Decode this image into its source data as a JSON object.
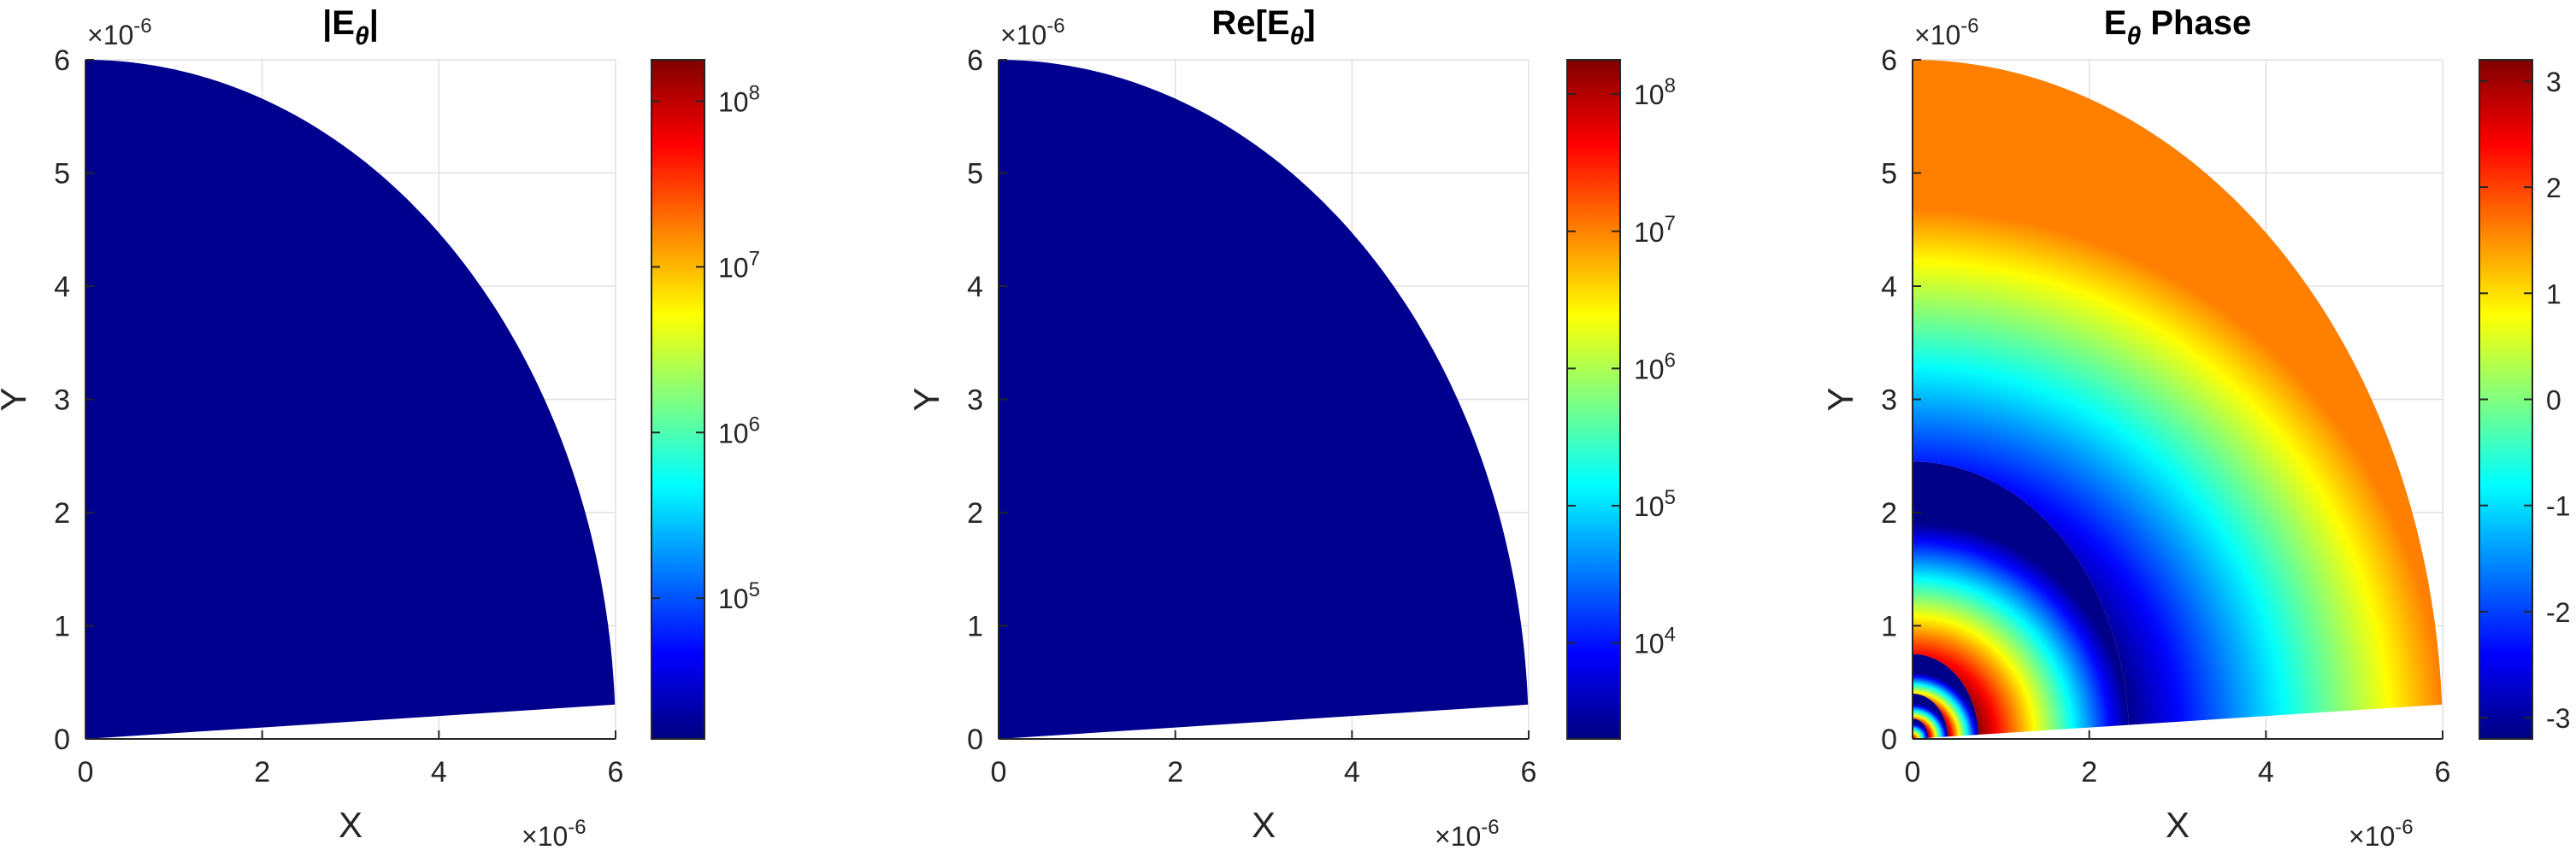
{
  "chart_data": [
    {
      "type": "heatmap",
      "title_parts": [
        "|E",
        "θ",
        "|"
      ],
      "xlabel": "X",
      "ylabel": "Y",
      "xticks": [
        "0",
        "2",
        "4",
        "6"
      ],
      "yticks": [
        "0",
        "1",
        "2",
        "3",
        "4",
        "5",
        "6"
      ],
      "x_tick_values": [
        0,
        2,
        4,
        6
      ],
      "y_tick_values": [
        0,
        1,
        2,
        3,
        4,
        5,
        6
      ],
      "x_multiplier": "×10",
      "x_multiplier_exp": "-6",
      "y_multiplier": "×10",
      "y_multiplier_exp": "-6",
      "xlim": [
        0,
        6
      ],
      "ylim": [
        0,
        6
      ],
      "domain": {
        "shape": "quarter-annulus sector",
        "radius": 6,
        "start_angle_deg": 2.9,
        "end_angle_deg": 90
      },
      "field_fill": "#00008f",
      "grid": true,
      "colormap": "jet",
      "colorbar": {
        "scale": "log",
        "min_exponent": 4.15,
        "max_exponent": 8.25,
        "tick_exponents": [
          "5",
          "6",
          "7",
          "8"
        ],
        "tick_base": "10",
        "tick_values": [
          5,
          6,
          7,
          8
        ]
      }
    },
    {
      "type": "heatmap",
      "title_parts": [
        "Re[E",
        "θ",
        "]"
      ],
      "xlabel": "X",
      "ylabel": "Y",
      "xticks": [
        "0",
        "2",
        "4",
        "6"
      ],
      "yticks": [
        "0",
        "1",
        "2",
        "3",
        "4",
        "5",
        "6"
      ],
      "x_tick_values": [
        0,
        2,
        4,
        6
      ],
      "y_tick_values": [
        0,
        1,
        2,
        3,
        4,
        5,
        6
      ],
      "x_multiplier": "×10",
      "x_multiplier_exp": "-6",
      "y_multiplier": "×10",
      "y_multiplier_exp": "-6",
      "xlim": [
        0,
        6
      ],
      "ylim": [
        0,
        6
      ],
      "domain": {
        "shape": "quarter-annulus sector",
        "radius": 6,
        "start_angle_deg": 2.9,
        "end_angle_deg": 90
      },
      "field_fill": "#00008f",
      "grid": true,
      "colormap": "jet",
      "colorbar": {
        "scale": "log",
        "min_exponent": 3.3,
        "max_exponent": 8.25,
        "tick_exponents": [
          "4",
          "5",
          "6",
          "7",
          "8"
        ],
        "tick_base": "10",
        "tick_values": [
          4,
          5,
          6,
          7,
          8
        ]
      }
    },
    {
      "type": "heatmap",
      "title_parts": [
        "E",
        "θ",
        " Phase"
      ],
      "xlabel": "X",
      "ylabel": "Y",
      "xticks": [
        "0",
        "2",
        "4",
        "6"
      ],
      "yticks": [
        "0",
        "1",
        "2",
        "3",
        "4",
        "5",
        "6"
      ],
      "x_tick_values": [
        0,
        2,
        4,
        6
      ],
      "y_tick_values": [
        0,
        1,
        2,
        3,
        4,
        5,
        6
      ],
      "x_multiplier": "×10",
      "x_multiplier_exp": "-6",
      "y_multiplier": "×10",
      "y_multiplier_exp": "-6",
      "xlim": [
        0,
        6
      ],
      "ylim": [
        0,
        6
      ],
      "domain": {
        "shape": "quarter-annulus sector",
        "radius": 6,
        "start_angle_deg": 2.9,
        "end_angle_deg": 90
      },
      "phase_rings": [
        {
          "r_min": 0,
          "r_max": 0.18,
          "phase_start": 3.14,
          "phase_end": -3.14
        },
        {
          "r_min": 0.18,
          "r_max": 0.4,
          "phase_start": 3.14,
          "phase_end": -3.14
        },
        {
          "r_min": 0.4,
          "r_max": 0.75,
          "phase_start": 3.14,
          "phase_end": -3.14
        },
        {
          "r_min": 0.75,
          "r_max": 2.45,
          "phase_start": 3.14,
          "phase_end": -3.14
        },
        {
          "r_min": 2.45,
          "r_max": 6.0,
          "phase_start": -3.14,
          "phase_end": 1.6
        }
      ],
      "grid": true,
      "colormap": "jet",
      "colorbar": {
        "scale": "linear",
        "min": -3.2,
        "max": 3.2,
        "ticks": [
          "-3",
          "-2",
          "-1",
          "0",
          "1",
          "2",
          "3"
        ],
        "tick_values": [
          -3,
          -2,
          -1,
          0,
          1,
          2,
          3
        ]
      }
    }
  ],
  "colors": {
    "jet_low": "#00008f",
    "jet_high": "#800000",
    "axis": "#262626",
    "grid": "#e0e0e0"
  }
}
